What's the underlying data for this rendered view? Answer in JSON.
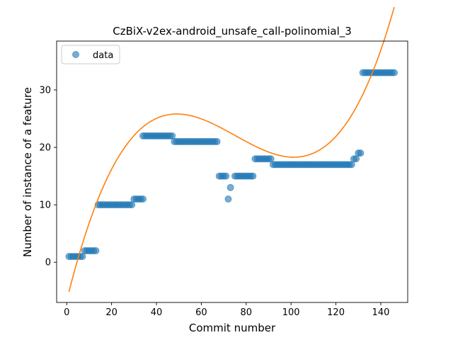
{
  "chart_data": {
    "type": "scatter",
    "title": "CzBiX-v2ex-android_unsafe_call-polinomial_3",
    "xlabel": "Commit number",
    "ylabel": "Number of instance of a feature",
    "xlim": [
      -4.5,
      152
    ],
    "ylim": [
      -7,
      38.5
    ],
    "xticks": [
      0,
      20,
      40,
      60,
      80,
      100,
      120,
      140
    ],
    "yticks": [
      0,
      10,
      20,
      30
    ],
    "grid": false,
    "legend": {
      "placement": "upper-left",
      "entries": [
        "data"
      ]
    },
    "colors": {
      "data": "#1f77b4",
      "fit": "#ff7f0e"
    },
    "series": [
      {
        "name": "data",
        "kind": "scatter",
        "segments": [
          {
            "x_from": 1,
            "x_to": 7,
            "y": 1
          },
          {
            "x_from": 8,
            "x_to": 13,
            "y": 2
          },
          {
            "x_from": 14,
            "x_to": 29,
            "y": 10
          },
          {
            "x_from": 30,
            "x_to": 34,
            "y": 11
          },
          {
            "x_from": 34,
            "x_to": 47,
            "y": 22
          },
          {
            "x_from": 48,
            "x_to": 67,
            "y": 21
          },
          {
            "x_from": 68,
            "x_to": 71,
            "y": 15
          },
          {
            "x_from": 75,
            "x_to": 83,
            "y": 15
          },
          {
            "x_from": 84,
            "x_to": 91,
            "y": 18
          },
          {
            "x_from": 92,
            "x_to": 127,
            "y": 17
          },
          {
            "x_from": 128,
            "x_to": 129,
            "y": 18
          },
          {
            "x_from": 130,
            "x_to": 131,
            "y": 19
          },
          {
            "x_from": 132,
            "x_to": 146,
            "y": 33
          }
        ],
        "points": [
          [
            72,
            11
          ],
          [
            73,
            13
          ]
        ]
      },
      {
        "kind": "line",
        "x_range": [
          1,
          146
        ],
        "poly_coeffs": [
          -6.7,
          1.58,
          -0.0239,
          0.000106
        ]
      }
    ]
  }
}
